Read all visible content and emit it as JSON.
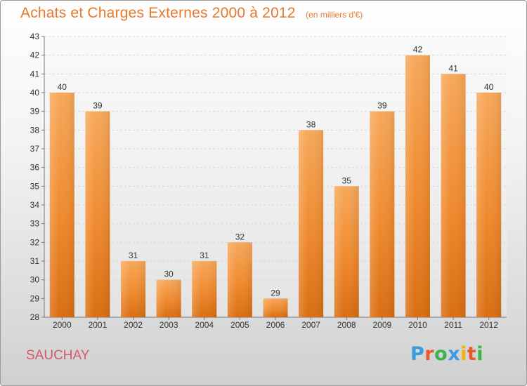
{
  "header": {
    "title": "Achats et Charges Externes 2000 à 2012",
    "subtitle": "(en milliers d'€)"
  },
  "footer": {
    "commune": "SAUCHAY",
    "logo_text": "Proxiti",
    "logo_letters": [
      {
        "char": "P",
        "color": "#3b9be0"
      },
      {
        "char": "r",
        "color": "#e85a2a"
      },
      {
        "char": "o",
        "color": "#3ab54a"
      },
      {
        "char": "x",
        "color": "#3b9be0"
      },
      {
        "char": "i",
        "color": "#f2b400"
      },
      {
        "char": "t",
        "color": "#e85a2a"
      },
      {
        "char": "i",
        "color": "#3ab54a"
      }
    ]
  },
  "chart_data": {
    "type": "bar",
    "title": "Achats et Charges Externes 2000 à 2012",
    "subtitle": "(en milliers d'€)",
    "categories": [
      "2000",
      "2001",
      "2002",
      "2003",
      "2004",
      "2005",
      "2006",
      "2007",
      "2008",
      "2009",
      "2010",
      "2011",
      "2012"
    ],
    "values": [
      40,
      39,
      31,
      30,
      31,
      32,
      29,
      38,
      35,
      39,
      42,
      41,
      40
    ],
    "xlabel": "",
    "ylabel": "",
    "ylim": [
      28,
      43
    ],
    "yticks": [
      28,
      29,
      30,
      31,
      32,
      33,
      34,
      35,
      36,
      37,
      38,
      39,
      40,
      41,
      42,
      43
    ],
    "grid": true,
    "data_labels": true,
    "bar_color": "#f08a2e",
    "bar_color_light": "#f7a85a",
    "bar_color_dark": "#d96e12"
  }
}
